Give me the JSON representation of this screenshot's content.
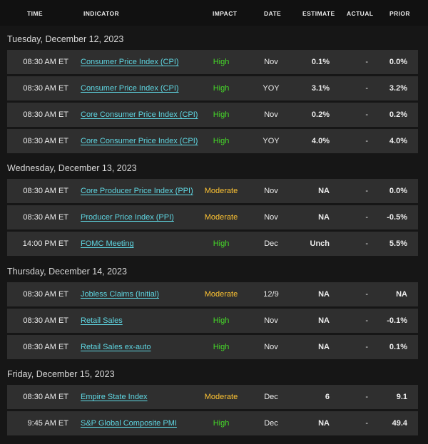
{
  "header": {
    "time": "TIME",
    "indicator": "INDICATOR",
    "impact": "IMPACT",
    "date": "DATE",
    "estimate": "ESTIMATE",
    "actual": "ACTUAL",
    "prior": "PRIOR"
  },
  "colors": {
    "high": "#46d829",
    "moderate": "#ffc433",
    "link": "#5fd7e3",
    "row_bg": "#2f2f2f",
    "page_bg": "#161616"
  },
  "days": [
    {
      "label": "Tuesday, December 12, 2023",
      "events": [
        {
          "time": "08:30 AM ET",
          "indicator": "Consumer Price Index (CPI)",
          "impact": "High",
          "date": "Nov",
          "estimate": "0.1%",
          "actual": "-",
          "prior": "0.0%"
        },
        {
          "time": "08:30 AM ET",
          "indicator": "Consumer Price Index (CPI)",
          "impact": "High",
          "date": "YOY",
          "estimate": "3.1%",
          "actual": "-",
          "prior": "3.2%"
        },
        {
          "time": "08:30 AM ET",
          "indicator": "Core Consumer Price Index (CPI)",
          "impact": "High",
          "date": "Nov",
          "estimate": "0.2%",
          "actual": "-",
          "prior": "0.2%"
        },
        {
          "time": "08:30 AM ET",
          "indicator": "Core Consumer Price Index (CPI)",
          "impact": "High",
          "date": "YOY",
          "estimate": "4.0%",
          "actual": "-",
          "prior": "4.0%"
        }
      ]
    },
    {
      "label": "Wednesday, December 13, 2023",
      "events": [
        {
          "time": "08:30 AM ET",
          "indicator": "Core Producer Price Index (PPI)",
          "impact": "Moderate",
          "date": "Nov",
          "estimate": "NA",
          "actual": "-",
          "prior": "0.0%"
        },
        {
          "time": "08:30 AM ET",
          "indicator": "Producer Price Index (PPI)",
          "impact": "Moderate",
          "date": "Nov",
          "estimate": "NA",
          "actual": "-",
          "prior": "-0.5%"
        },
        {
          "time": "14:00 PM ET",
          "indicator": "FOMC Meeting",
          "impact": "High",
          "date": "Dec",
          "estimate": "Unch",
          "actual": "-",
          "prior": "5.5%"
        }
      ]
    },
    {
      "label": "Thursday, December 14, 2023",
      "events": [
        {
          "time": "08:30 AM ET",
          "indicator": "Jobless Claims (Initial)",
          "impact": "Moderate",
          "date": "12/9",
          "estimate": "NA",
          "actual": "-",
          "prior": "NA"
        },
        {
          "time": "08:30 AM ET",
          "indicator": "Retail Sales",
          "impact": "High",
          "date": "Nov",
          "estimate": "NA",
          "actual": "-",
          "prior": "-0.1%"
        },
        {
          "time": "08:30 AM ET",
          "indicator": "Retail Sales ex-auto",
          "impact": "High",
          "date": "Nov",
          "estimate": "NA",
          "actual": "-",
          "prior": "0.1%"
        }
      ]
    },
    {
      "label": "Friday, December 15, 2023",
      "events": [
        {
          "time": "08:30 AM ET",
          "indicator": "Empire State Index",
          "impact": "Moderate",
          "date": "Dec",
          "estimate": "6",
          "actual": "-",
          "prior": "9.1"
        },
        {
          "time": "9:45 AM ET",
          "indicator": "S&P Global Composite PMI",
          "impact": "High",
          "date": "Dec",
          "estimate": "NA",
          "actual": "-",
          "prior": "49.4"
        }
      ]
    }
  ]
}
